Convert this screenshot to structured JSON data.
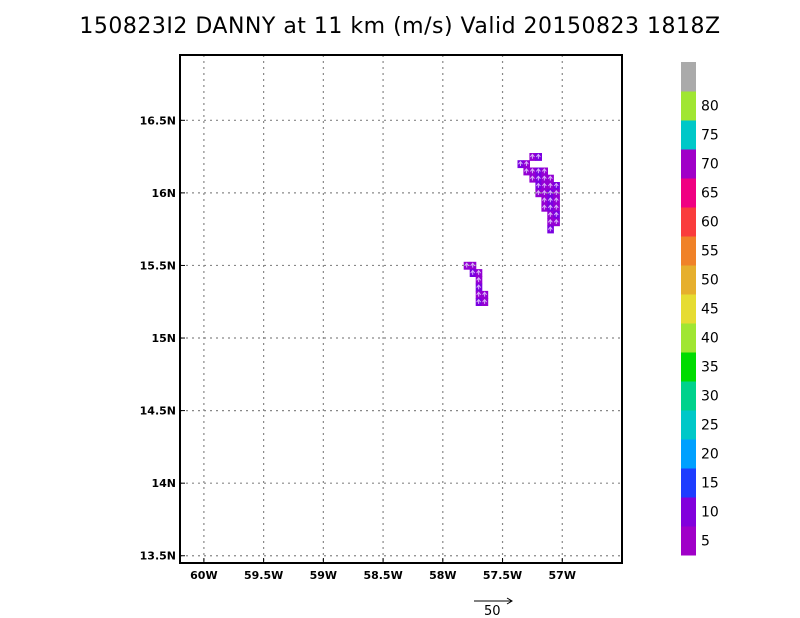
{
  "title": "150823I2 DANNY at 11 km (m/s) Valid 20150823 1818Z",
  "chart_data": {
    "type": "heatmap",
    "title": "150823I2 DANNY at 11 km (m/s) Valid 20150823 1818Z",
    "xlim": [
      -60.2,
      -56.5
    ],
    "ylim": [
      13.45,
      16.95
    ],
    "x_ticks": [
      {
        "value": -60.0,
        "label": "60W"
      },
      {
        "value": -59.5,
        "label": "59.5W"
      },
      {
        "value": -59.0,
        "label": "59W"
      },
      {
        "value": -58.5,
        "label": "58.5W"
      },
      {
        "value": -58.0,
        "label": "58W"
      },
      {
        "value": -57.5,
        "label": "57.5W"
      },
      {
        "value": -57.0,
        "label": "57W"
      }
    ],
    "y_ticks": [
      {
        "value": 13.5,
        "label": "13.5N"
      },
      {
        "value": 14.0,
        "label": "14N"
      },
      {
        "value": 14.5,
        "label": "14.5N"
      },
      {
        "value": 15.0,
        "label": "15N"
      },
      {
        "value": 15.5,
        "label": "15.5N"
      },
      {
        "value": 16.0,
        "label": "16N"
      },
      {
        "value": 16.5,
        "label": "16.5N"
      }
    ],
    "grid": true,
    "cell_size_deg": 0.05,
    "cells": [
      {
        "x": -57.35,
        "y": 16.2,
        "v": 5
      },
      {
        "x": -57.3,
        "y": 16.2,
        "v": 5
      },
      {
        "x": -57.25,
        "y": 16.25,
        "v": 5
      },
      {
        "x": -57.2,
        "y": 16.25,
        "v": 5
      },
      {
        "x": -57.3,
        "y": 16.15,
        "v": 5
      },
      {
        "x": -57.25,
        "y": 16.15,
        "v": 5
      },
      {
        "x": -57.2,
        "y": 16.15,
        "v": 5
      },
      {
        "x": -57.15,
        "y": 16.15,
        "v": 5
      },
      {
        "x": -57.25,
        "y": 16.1,
        "v": 5
      },
      {
        "x": -57.2,
        "y": 16.1,
        "v": 5
      },
      {
        "x": -57.15,
        "y": 16.1,
        "v": 5
      },
      {
        "x": -57.1,
        "y": 16.1,
        "v": 5
      },
      {
        "x": -57.2,
        "y": 16.05,
        "v": 5
      },
      {
        "x": -57.15,
        "y": 16.05,
        "v": 5
      },
      {
        "x": -57.1,
        "y": 16.05,
        "v": 5
      },
      {
        "x": -57.05,
        "y": 16.05,
        "v": 5
      },
      {
        "x": -57.2,
        "y": 16.0,
        "v": 5
      },
      {
        "x": -57.15,
        "y": 16.0,
        "v": 5
      },
      {
        "x": -57.1,
        "y": 16.0,
        "v": 5
      },
      {
        "x": -57.05,
        "y": 16.0,
        "v": 5
      },
      {
        "x": -57.15,
        "y": 15.95,
        "v": 5
      },
      {
        "x": -57.1,
        "y": 15.95,
        "v": 5
      },
      {
        "x": -57.05,
        "y": 15.95,
        "v": 5
      },
      {
        "x": -57.15,
        "y": 15.9,
        "v": 5
      },
      {
        "x": -57.1,
        "y": 15.9,
        "v": 5
      },
      {
        "x": -57.05,
        "y": 15.9,
        "v": 5
      },
      {
        "x": -57.1,
        "y": 15.85,
        "v": 5
      },
      {
        "x": -57.05,
        "y": 15.85,
        "v": 5
      },
      {
        "x": -57.1,
        "y": 15.8,
        "v": 5
      },
      {
        "x": -57.05,
        "y": 15.8,
        "v": 5
      },
      {
        "x": -57.1,
        "y": 15.75,
        "v": 5
      },
      {
        "x": -57.8,
        "y": 15.5,
        "v": 5
      },
      {
        "x": -57.75,
        "y": 15.5,
        "v": 5
      },
      {
        "x": -57.75,
        "y": 15.45,
        "v": 5
      },
      {
        "x": -57.7,
        "y": 15.45,
        "v": 5
      },
      {
        "x": -57.7,
        "y": 15.4,
        "v": 5
      },
      {
        "x": -57.7,
        "y": 15.35,
        "v": 5
      },
      {
        "x": -57.7,
        "y": 15.3,
        "v": 5
      },
      {
        "x": -57.65,
        "y": 15.3,
        "v": 5
      },
      {
        "x": -57.7,
        "y": 15.25,
        "v": 5
      },
      {
        "x": -57.65,
        "y": 15.25,
        "v": 5
      }
    ],
    "vector_scale": {
      "label": "50",
      "value": 50
    }
  },
  "colorbar": {
    "levels": [
      {
        "label": "5",
        "color": "#a000c8"
      },
      {
        "label": "10",
        "color": "#8200dc"
      },
      {
        "label": "15",
        "color": "#1e3cff"
      },
      {
        "label": "20",
        "color": "#00a0ff"
      },
      {
        "label": "25",
        "color": "#00c8c8"
      },
      {
        "label": "30",
        "color": "#00d28c"
      },
      {
        "label": "35",
        "color": "#00dc00"
      },
      {
        "label": "40",
        "color": "#a0e632"
      },
      {
        "label": "45",
        "color": "#e6dc32"
      },
      {
        "label": "50",
        "color": "#e6af2d"
      },
      {
        "label": "55",
        "color": "#f08228"
      },
      {
        "label": "60",
        "color": "#fa3c3c"
      },
      {
        "label": "65",
        "color": "#f00082"
      },
      {
        "label": "70",
        "color": "#a000c8"
      },
      {
        "label": "75",
        "color": "#00c8c8"
      },
      {
        "label": "80",
        "color": "#a0e632"
      },
      {
        "label": "",
        "color": "#aaaaaa"
      }
    ]
  },
  "colors": {
    "cell_fill": "#9400d3",
    "cell_fill_alt": "#7a00e0",
    "arrow": "#d8b4f8",
    "grid": "#888888"
  }
}
